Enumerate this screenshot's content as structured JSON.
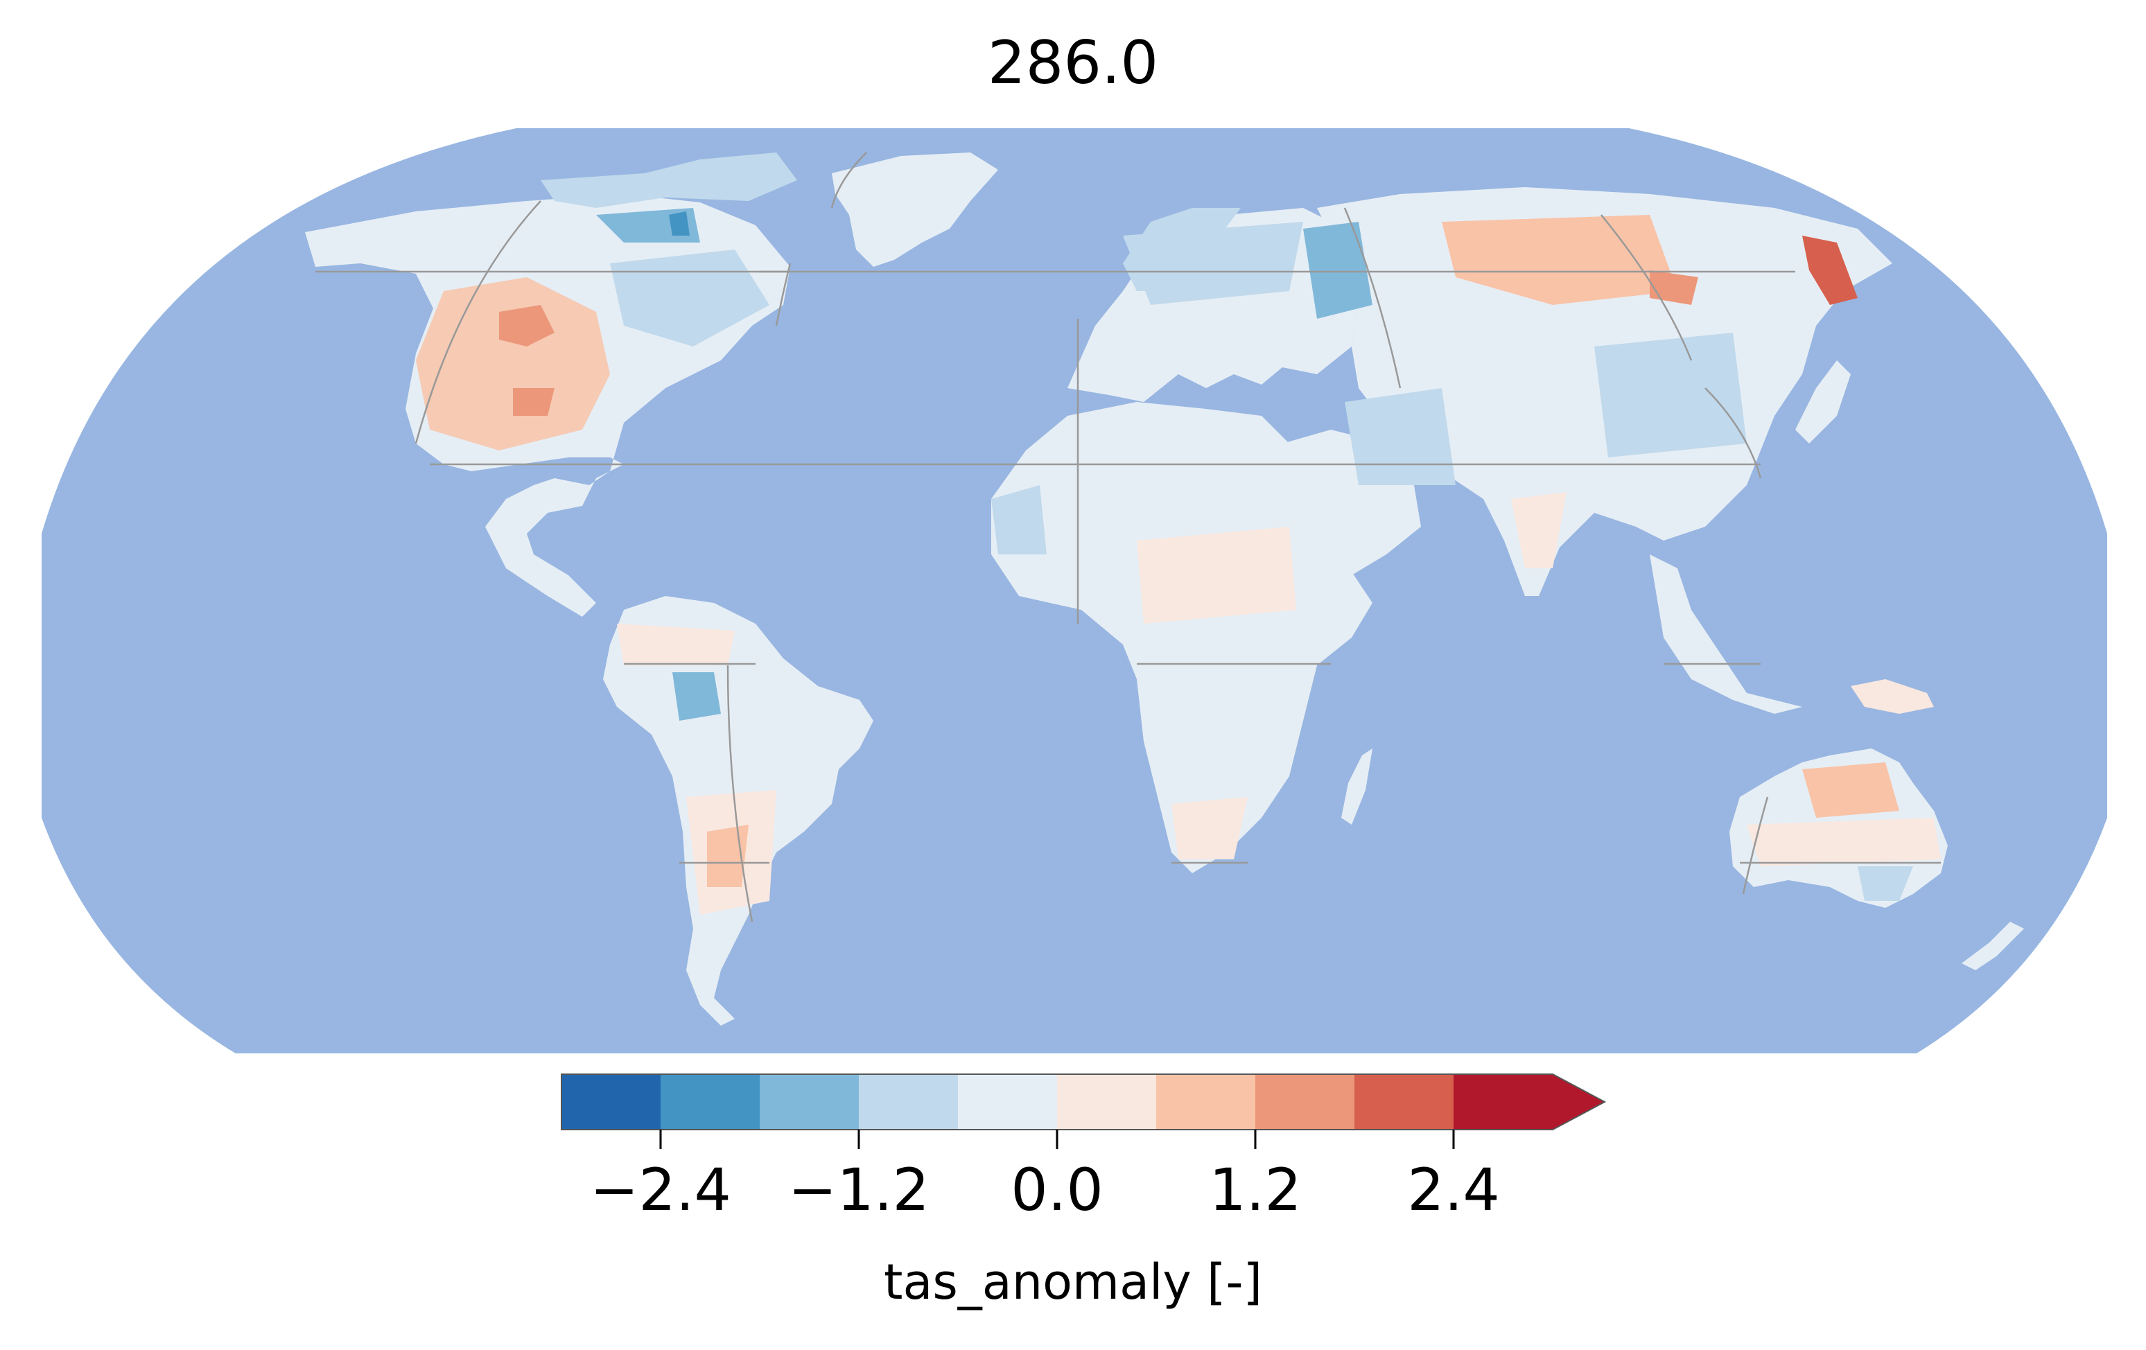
{
  "title": "286.0",
  "map": {
    "projection": "Robinson",
    "ocean_color": "#98b6e1",
    "gridlines": true,
    "gridline_color": "#999999",
    "variable": "tas_anomaly"
  },
  "colorbar": {
    "label": "tas_anomaly [-]",
    "boundaries": [
      -3.0,
      -2.4,
      -1.8,
      -1.2,
      -0.6,
      0.0,
      0.6,
      1.2,
      1.8,
      2.4,
      3.0
    ],
    "colors": [
      "#2166ac",
      "#4393c3",
      "#80b8d9",
      "#c0d9ec",
      "#e6eef5",
      "#f9e8e0",
      "#f8c3a7",
      "#ec977a",
      "#d6604d",
      "#b2182b"
    ],
    "extend": "max",
    "ticks": [
      "−2.4",
      "−1.2",
      "0.0",
      "1.2",
      "2.4"
    ]
  }
}
